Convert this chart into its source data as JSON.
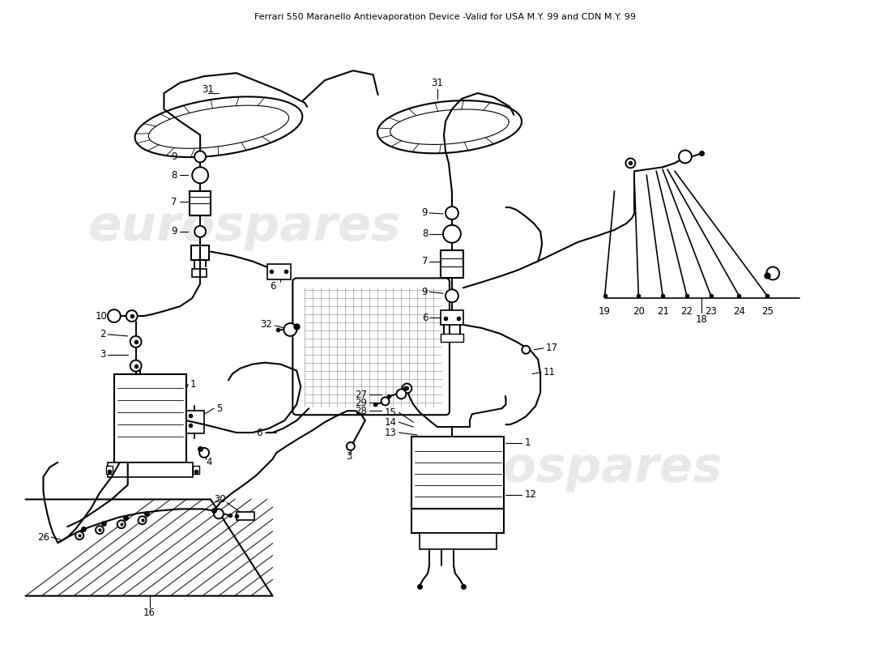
{
  "title": "Ferrari 550 Maranello Antievaporation Device -Valid for USA M.Y. 99 and CDN M.Y. 99",
  "bg": "#ffffff",
  "lc": "#000000",
  "watermark": "eurospares",
  "wc": "#d0d0d0",
  "lw": 1.4,
  "fs": 8.5
}
